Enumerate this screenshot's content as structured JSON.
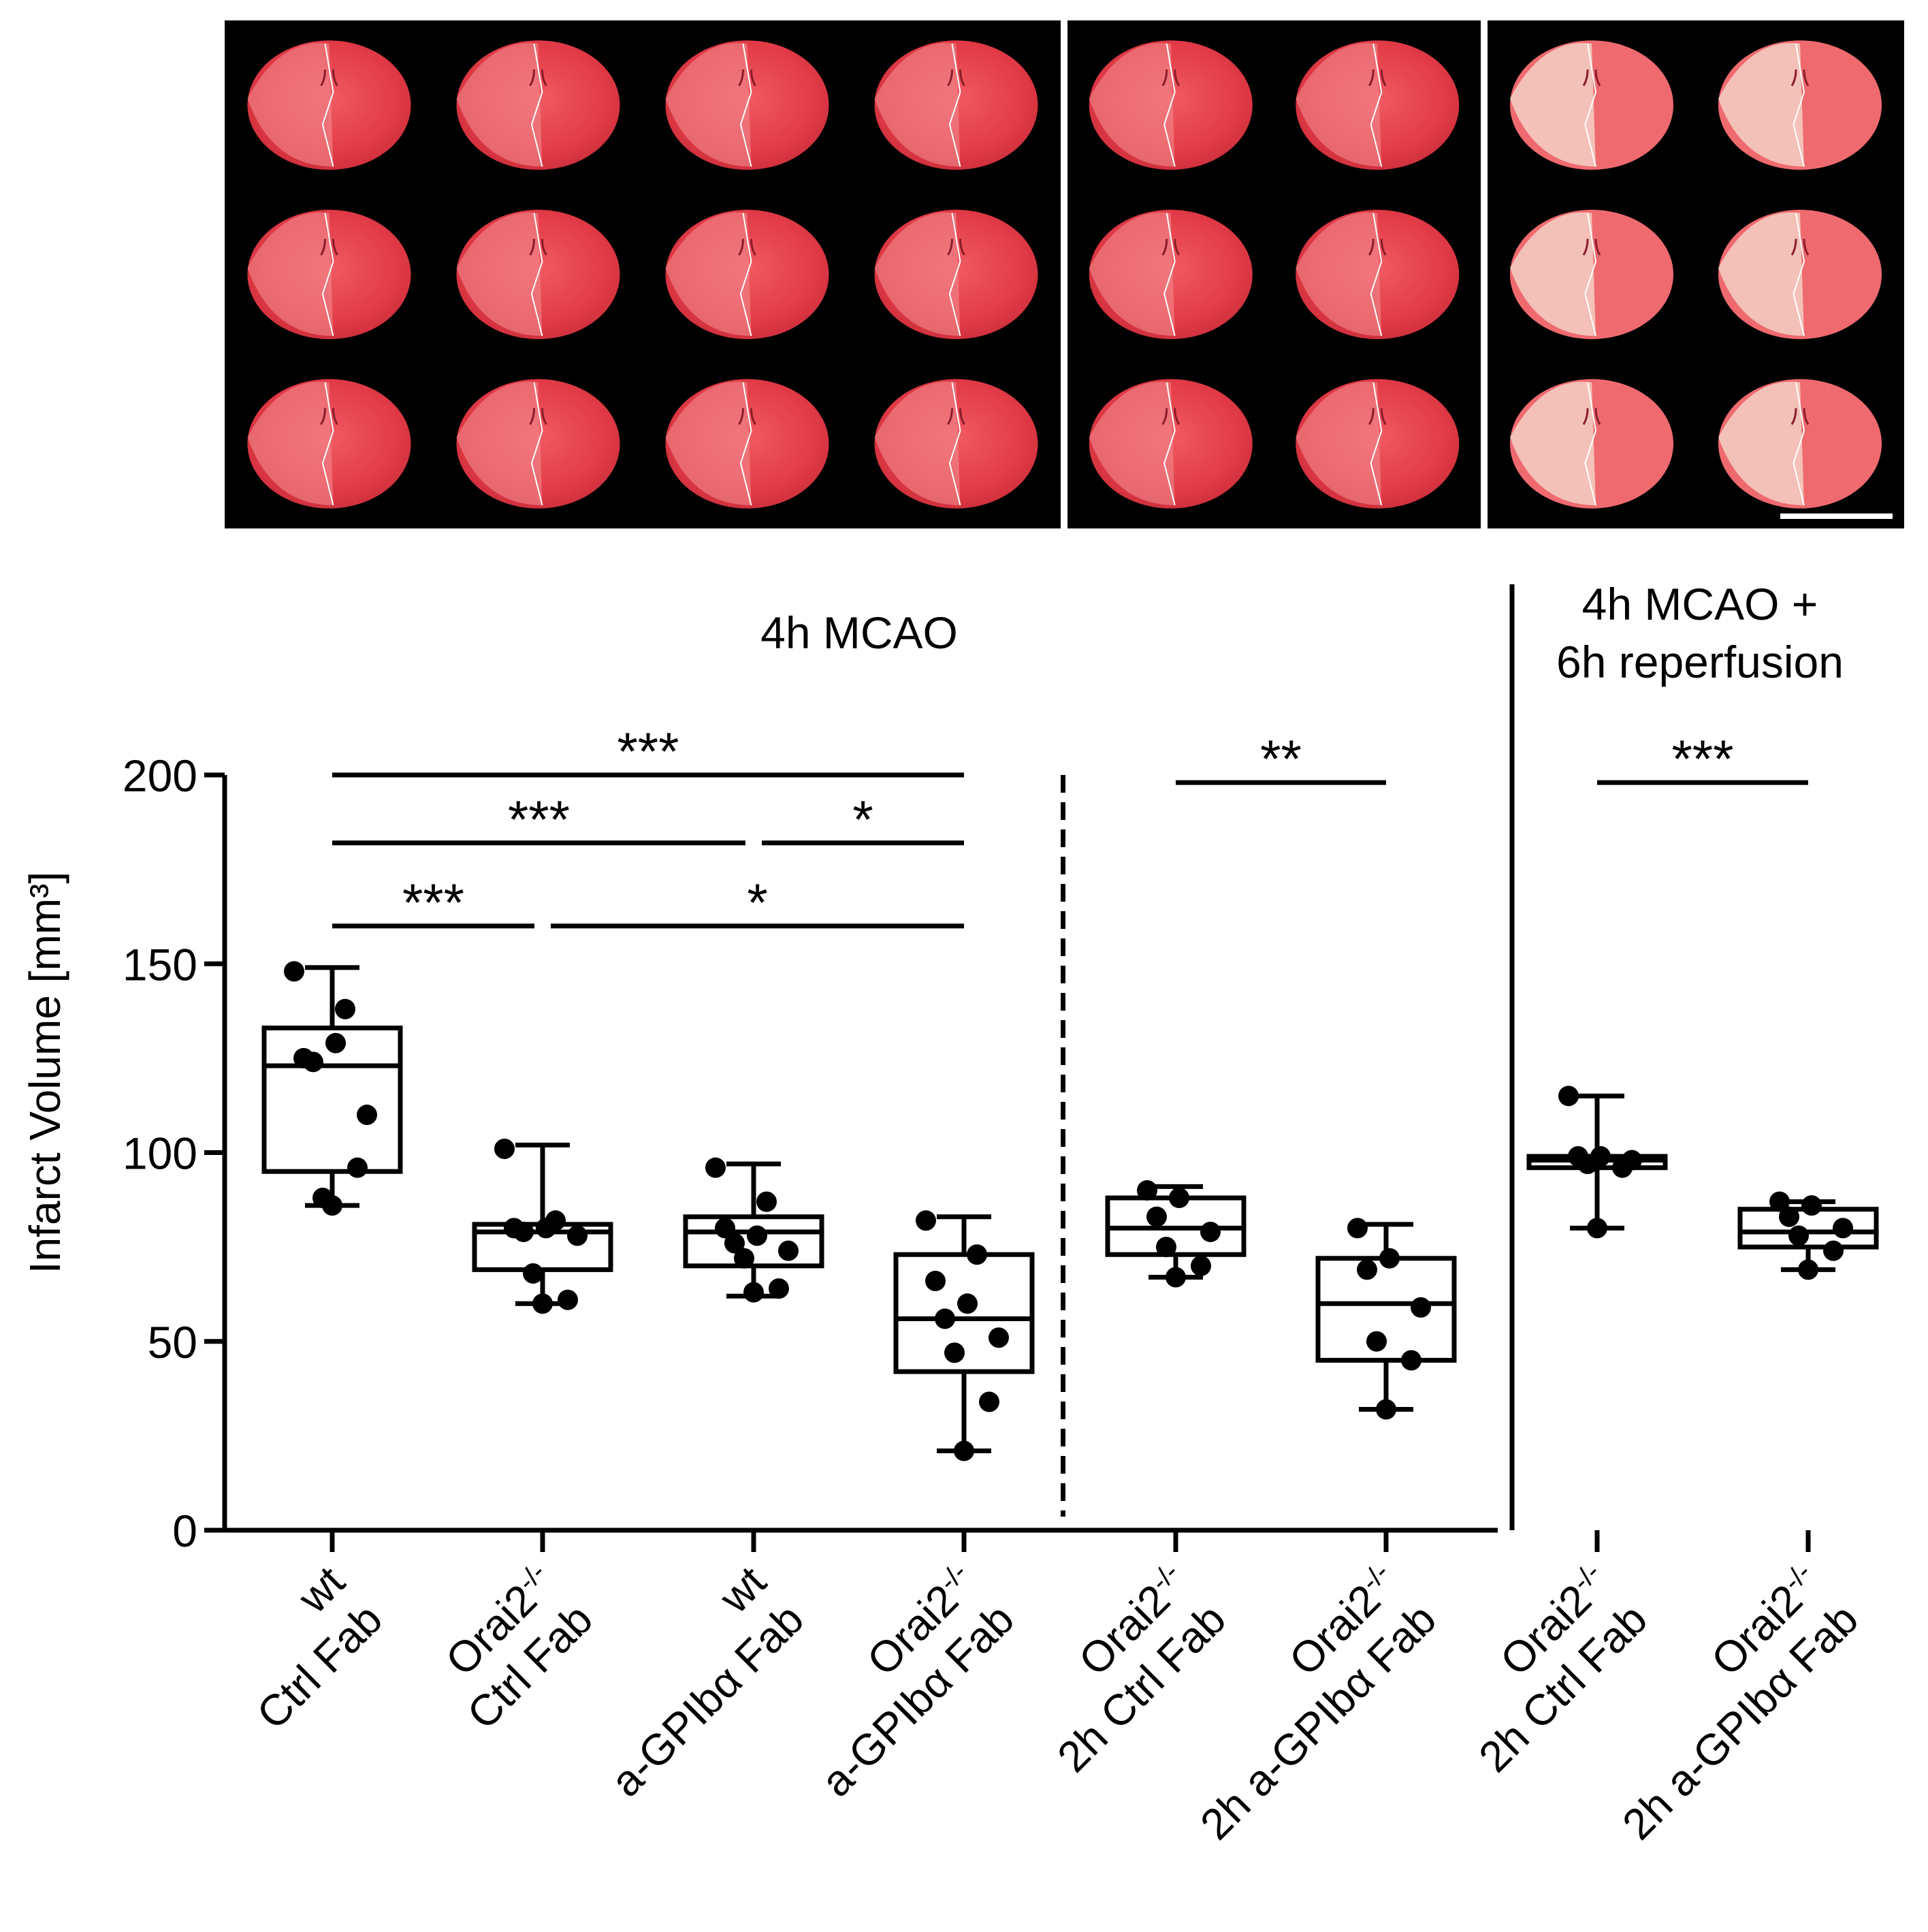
{
  "figure": {
    "scale_bar_label": ""
  },
  "images": {
    "panels": [
      {
        "name": "panel-orai2-4h-mcao-groups",
        "slices": [
          [
            1,
            1,
            1,
            1
          ],
          [
            1,
            1,
            1,
            1
          ],
          [
            1,
            1,
            1,
            1
          ]
        ]
      },
      {
        "name": "panel-orai2-2h-treatment",
        "slices": [
          [
            1,
            1
          ],
          [
            1,
            1
          ],
          [
            1,
            1
          ]
        ]
      },
      {
        "name": "panel-reperfusion",
        "slices": [
          [
            1,
            1
          ],
          [
            1,
            1
          ],
          [
            1,
            1
          ]
        ]
      }
    ],
    "colors": {
      "background": "#000000",
      "tissue": "#e8454e",
      "tissue_pale": "#f2c6bb",
      "divider": "#ffffff"
    }
  },
  "chart_data": {
    "type": "box",
    "ylabel": "Infarct Volume [mm³]",
    "ylim": [
      0,
      200
    ],
    "yticks": [
      "0",
      "50",
      "100",
      "150",
      "200"
    ],
    "section_labels": [
      {
        "text": "4h MCAO"
      },
      {
        "text": "4h MCAO +"
      },
      {
        "text": "6h reperfusion"
      }
    ],
    "groups": [
      {
        "line1": "wt",
        "line2": "Ctrl Fab",
        "sup": "",
        "min": 86,
        "q1": 95,
        "median": 123,
        "q3": 133,
        "max": 149,
        "points": [
          86,
          96,
          88,
          110,
          124,
          129,
          125,
          138,
          148
        ]
      },
      {
        "line1": "Orai2",
        "sup": "-/-",
        "line2": "Ctrl Fab",
        "min": 60,
        "q1": 69,
        "median": 79,
        "q3": 81,
        "max": 102,
        "points": [
          60,
          61,
          68,
          78,
          79,
          80,
          80,
          82,
          101
        ]
      },
      {
        "line1": "wt",
        "line2": "a-GPIbα Fab",
        "sup": "",
        "min": 62,
        "q1": 70,
        "median": 79,
        "q3": 83,
        "max": 97,
        "points": [
          63,
          64,
          72,
          74,
          76,
          78,
          80,
          87,
          96
        ]
      },
      {
        "line1": "Orai2",
        "sup": "-/-",
        "line2": "a-GPIbα Fab",
        "min": 21,
        "q1": 42,
        "median": 56,
        "q3": 73,
        "max": 83,
        "points": [
          21,
          34,
          47,
          51,
          56,
          60,
          66,
          73,
          82
        ]
      },
      {
        "line1": "Orai2",
        "sup": "-/-",
        "line2": "2h Ctrl Fab",
        "min": 67,
        "q1": 73,
        "median": 80,
        "q3": 88,
        "max": 91,
        "points": [
          67,
          70,
          75,
          79,
          83,
          88,
          90
        ]
      },
      {
        "line1": "Orai2",
        "sup": "-/-",
        "line2": "2h a-GPIbα Fab",
        "min": 32,
        "q1": 45,
        "median": 60,
        "q3": 72,
        "max": 81,
        "points": [
          32,
          45,
          50,
          59,
          69,
          72,
          80
        ]
      },
      {
        "line1": "Orai2",
        "sup": "-/-",
        "line2": "2h Ctrl Fab",
        "min": 80,
        "q1": 96,
        "median": 98,
        "q3": 99,
        "max": 115,
        "points": [
          80,
          96,
          97,
          98,
          99,
          99,
          115
        ]
      },
      {
        "line1": "Orai2",
        "sup": "-/-",
        "line2": "2h a-GPIbα Fab",
        "min": 69,
        "q1": 75,
        "median": 79,
        "q3": 85,
        "max": 87,
        "points": [
          69,
          74,
          78,
          80,
          83,
          86,
          87
        ]
      }
    ],
    "significance": [
      {
        "from": 0,
        "to": 3,
        "level": 200,
        "label": "***"
      },
      {
        "from": 0,
        "to": 2,
        "level": 182,
        "label": "***"
      },
      {
        "from": 2,
        "to": 3,
        "level": 182,
        "label": "*"
      },
      {
        "from": 0,
        "to": 1,
        "level": 160,
        "label": "***"
      },
      {
        "from": 1,
        "to": 3,
        "level": 160,
        "label": "*"
      },
      {
        "from": 4,
        "to": 5,
        "level": 198,
        "label": "**"
      },
      {
        "from": 6,
        "to": 7,
        "level": 198,
        "label": "***"
      }
    ],
    "dividers": [
      {
        "after_group": 3,
        "style": "dashed"
      },
      {
        "after_group": 5,
        "style": "solid"
      }
    ]
  }
}
